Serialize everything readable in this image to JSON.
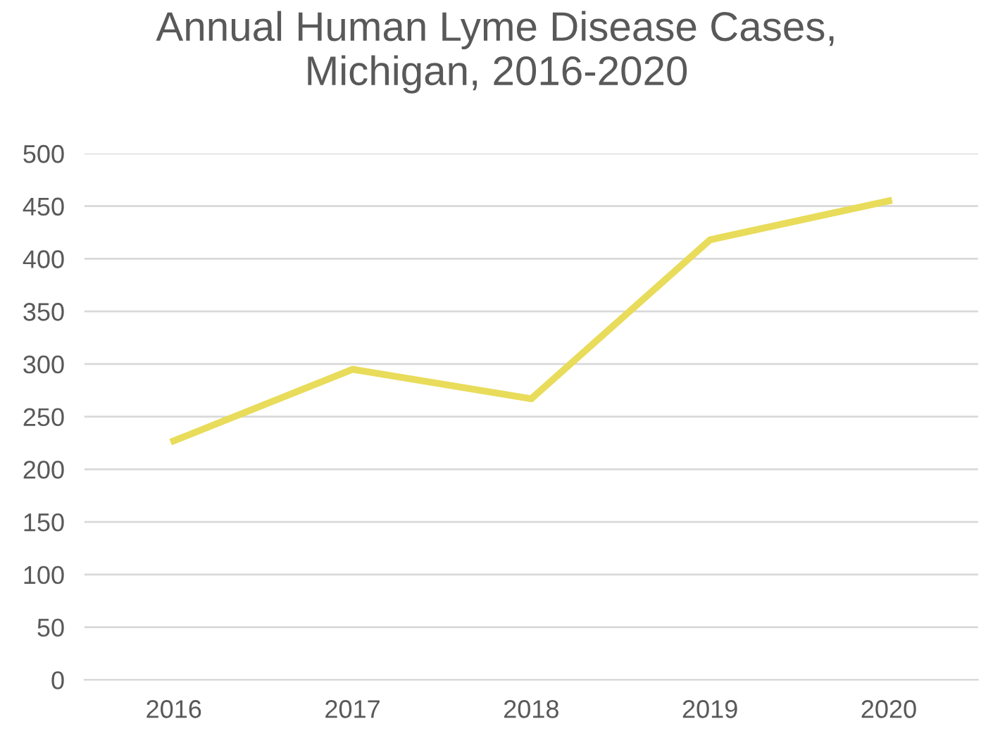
{
  "chart_data": {
    "type": "line",
    "title": "Annual Human Lyme Disease Cases,\nMichigan, 2016-2020",
    "categories": [
      "2016",
      "2017",
      "2018",
      "2019",
      "2020"
    ],
    "series": [
      {
        "color": "#e8dc5a",
        "values": [
          227,
          295,
          267,
          418,
          455
        ]
      }
    ],
    "ylim": [
      0,
      500
    ],
    "yticks": [
      0,
      50,
      100,
      150,
      200,
      250,
      300,
      350,
      400,
      450,
      500
    ],
    "grid": "y",
    "legend": false,
    "marker": "none",
    "line_style": "solid"
  }
}
